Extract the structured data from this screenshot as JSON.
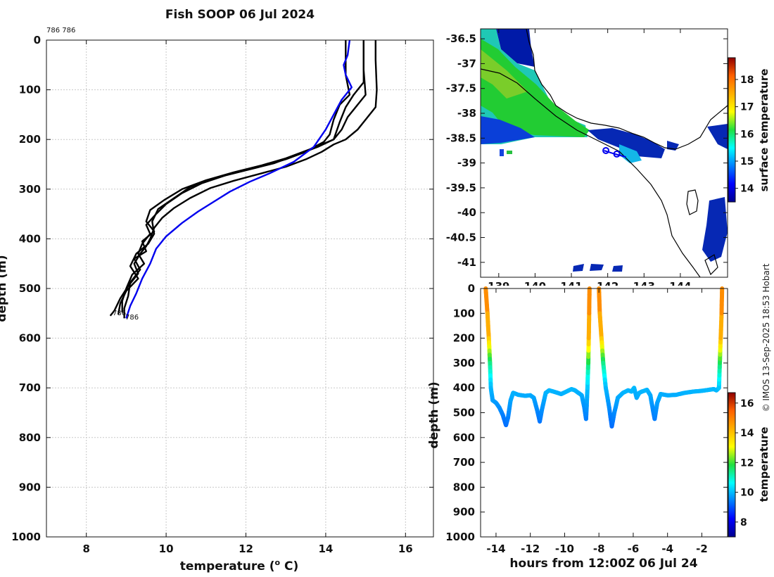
{
  "credit": "© IMOS 13-Sep-2025 18:53 Hobart",
  "chart_data": [
    {
      "id": "profile",
      "type": "line",
      "title": "Fish SOOP 06 Jul 2024",
      "xlabel": "temperature (",
      "xlabel_sup": "o",
      "xlabel_tail": " C)",
      "ylabel": "depth (m)",
      "xlim": [
        7,
        16.7
      ],
      "ylim": [
        1000,
        0
      ],
      "xticks": [
        8,
        10,
        12,
        14,
        16
      ],
      "yticks": [
        0,
        100,
        200,
        300,
        400,
        500,
        600,
        700,
        800,
        900,
        1000
      ],
      "annotations": {
        "top_label": "786 786",
        "bottom_label_a": "786",
        "bottom_label_b": "786"
      },
      "series": [
        {
          "name": "profile-1",
          "color": "#000000",
          "points": [
            [
              15.25,
              0
            ],
            [
              15.25,
              40
            ],
            [
              15.28,
              100
            ],
            [
              15.25,
              135
            ],
            [
              15.1,
              150
            ],
            [
              14.95,
              165
            ],
            [
              14.8,
              180
            ],
            [
              14.5,
              200
            ],
            [
              14.2,
              210
            ],
            [
              13.9,
              225
            ],
            [
              13.5,
              240
            ],
            [
              13.0,
              255
            ],
            [
              12.4,
              268
            ],
            [
              11.7,
              283
            ],
            [
              11.1,
              298
            ],
            [
              10.6,
              318
            ],
            [
              10.2,
              338
            ],
            [
              9.9,
              358
            ],
            [
              9.7,
              378
            ],
            [
              9.6,
              400
            ],
            [
              9.5,
              415
            ],
            [
              9.35,
              430
            ],
            [
              9.2,
              450
            ],
            [
              9.3,
              470
            ],
            [
              9.05,
              495
            ],
            [
              8.85,
              520
            ],
            [
              8.7,
              545
            ],
            [
              8.6,
              555
            ]
          ]
        },
        {
          "name": "profile-2",
          "color": "#000000",
          "points": [
            [
              14.95,
              0
            ],
            [
              14.95,
              60
            ],
            [
              15.0,
              110
            ],
            [
              14.8,
              130
            ],
            [
              14.55,
              155
            ],
            [
              14.4,
              180
            ],
            [
              14.2,
              200
            ],
            [
              13.9,
              210
            ],
            [
              13.5,
              225
            ],
            [
              13.0,
              240
            ],
            [
              12.3,
              256
            ],
            [
              11.5,
              272
            ],
            [
              10.9,
              288
            ],
            [
              10.4,
              308
            ],
            [
              10.0,
              330
            ],
            [
              9.75,
              350
            ],
            [
              9.5,
              372
            ],
            [
              9.6,
              390
            ],
            [
              9.4,
              410
            ],
            [
              9.3,
              430
            ],
            [
              9.45,
              450
            ],
            [
              9.15,
              472
            ],
            [
              9.0,
              500
            ],
            [
              8.9,
              525
            ],
            [
              8.9,
              548
            ]
          ]
        },
        {
          "name": "profile-3",
          "color": "#000000",
          "points": [
            [
              14.95,
              0
            ],
            [
              14.95,
              85
            ],
            [
              14.7,
              110
            ],
            [
              14.5,
              135
            ],
            [
              14.35,
              165
            ],
            [
              14.2,
              200
            ],
            [
              13.8,
              215
            ],
            [
              13.3,
              230
            ],
            [
              12.7,
              248
            ],
            [
              12.0,
              262
            ],
            [
              11.2,
              278
            ],
            [
              10.6,
              296
            ],
            [
              10.2,
              318
            ],
            [
              9.8,
              340
            ],
            [
              9.65,
              365
            ],
            [
              9.7,
              390
            ],
            [
              9.55,
              410
            ],
            [
              9.25,
              430
            ],
            [
              9.1,
              455
            ],
            [
              9.3,
              480
            ],
            [
              9.0,
              505
            ],
            [
              8.85,
              530
            ],
            [
              8.8,
              552
            ]
          ]
        },
        {
          "name": "profile-4",
          "color": "#000000",
          "points": [
            [
              14.5,
              0
            ],
            [
              14.5,
              70
            ],
            [
              14.6,
              110
            ],
            [
              14.35,
              130
            ],
            [
              14.2,
              160
            ],
            [
              14.1,
              190
            ],
            [
              13.95,
              205
            ],
            [
              13.6,
              220
            ],
            [
              13.0,
              238
            ],
            [
              12.4,
              252
            ],
            [
              11.7,
              266
            ],
            [
              11.0,
              282
            ],
            [
              10.4,
              300
            ],
            [
              9.95,
              322
            ],
            [
              9.6,
              342
            ],
            [
              9.5,
              365
            ],
            [
              9.7,
              385
            ],
            [
              9.4,
              405
            ],
            [
              9.5,
              425
            ],
            [
              9.2,
              440
            ],
            [
              9.35,
              462
            ],
            [
              9.1,
              488
            ],
            [
              9.05,
              515
            ],
            [
              8.95,
              540
            ],
            [
              8.95,
              560
            ]
          ]
        },
        {
          "name": "profile-blue",
          "color": "#0000ee",
          "points": [
            [
              14.6,
              0
            ],
            [
              14.55,
              30
            ],
            [
              14.45,
              50
            ],
            [
              14.5,
              70
            ],
            [
              14.65,
              95
            ],
            [
              14.4,
              120
            ],
            [
              14.2,
              150
            ],
            [
              14.0,
              180
            ],
            [
              13.7,
              215
            ],
            [
              13.2,
              245
            ],
            [
              12.6,
              268
            ],
            [
              12.1,
              285
            ],
            [
              11.6,
              305
            ],
            [
              11.2,
              325
            ],
            [
              10.8,
              345
            ],
            [
              10.4,
              368
            ],
            [
              10.0,
              395
            ],
            [
              9.75,
              420
            ],
            [
              9.6,
              450
            ],
            [
              9.4,
              480
            ],
            [
              9.25,
              510
            ],
            [
              9.1,
              535
            ],
            [
              9.0,
              560
            ]
          ]
        }
      ]
    },
    {
      "id": "map",
      "type": "heatmap",
      "xlim": [
        138.5,
        145.3
      ],
      "ylim": [
        -41.3,
        -36.3
      ],
      "xticks": [
        139,
        140,
        141,
        142,
        143,
        144
      ],
      "xtick_labels": [
        "139",
        "140",
        "141",
        "142",
        "143",
        "144"
      ],
      "yticks": [
        -36.5,
        -37,
        -37.5,
        -38,
        -38.5,
        -39,
        -39.5,
        -40,
        -40.5,
        -41
      ],
      "ytick_labels": [
        "-36.5",
        "-37",
        "-37.5",
        "-38",
        "-38.5",
        "-39",
        "-39.5",
        "-40",
        "-40.5",
        "-41"
      ],
      "colorbar": {
        "label": "surface temperature",
        "range": [
          13.5,
          18.8
        ],
        "ticks": [
          14,
          15,
          16,
          17,
          18
        ],
        "tick_labels": [
          "14",
          "15",
          "16",
          "17",
          "18"
        ]
      },
      "track": [
        [
          141.9,
          -38.75
        ],
        [
          142.2,
          -38.82
        ],
        [
          142.5,
          -38.88
        ]
      ],
      "track_markers": [
        [
          141.95,
          -38.75
        ],
        [
          142.25,
          -38.82
        ]
      ]
    },
    {
      "id": "timeseries",
      "type": "scatter",
      "xlabel": "hours from 12:00Z 06 Jul 24",
      "ylabel": "depth (m)",
      "xlim": [
        -14.9,
        -0.5
      ],
      "ylim": [
        1000,
        0
      ],
      "xticks": [
        -14,
        -12,
        -10,
        -8,
        -6,
        -4,
        -2
      ],
      "xtick_labels": [
        "-14",
        "-12",
        "-10",
        "-8",
        "-6",
        "-4",
        "-2"
      ],
      "yticks": [
        0,
        100,
        200,
        300,
        400,
        500,
        600,
        700,
        800,
        900,
        1000
      ],
      "ytick_labels": [
        "0",
        "100",
        "200",
        "300",
        "400",
        "500",
        "600",
        "700",
        "800",
        "900",
        "1000"
      ],
      "colorbar": {
        "label": "temperature",
        "range": [
          7,
          16.7
        ],
        "ticks": [
          8,
          10,
          12,
          14,
          16
        ],
        "tick_labels": [
          "8",
          "10",
          "12",
          "14",
          "16"
        ]
      },
      "track": [
        [
          -14.6,
          0
        ],
        [
          -14.5,
          100
        ],
        [
          -14.42,
          200
        ],
        [
          -14.35,
          300
        ],
        [
          -14.3,
          400
        ],
        [
          -14.2,
          450
        ],
        [
          -14.0,
          460
        ],
        [
          -13.8,
          480
        ],
        [
          -13.6,
          510
        ],
        [
          -13.42,
          550
        ],
        [
          -13.3,
          520
        ],
        [
          -13.15,
          450
        ],
        [
          -13.0,
          420
        ],
        [
          -12.7,
          428
        ],
        [
          -12.3,
          432
        ],
        [
          -12.0,
          430
        ],
        [
          -11.8,
          440
        ],
        [
          -11.6,
          490
        ],
        [
          -11.45,
          535
        ],
        [
          -11.3,
          480
        ],
        [
          -11.1,
          420
        ],
        [
          -10.9,
          410
        ],
        [
          -10.5,
          418
        ],
        [
          -10.2,
          425
        ],
        [
          -9.9,
          415
        ],
        [
          -9.6,
          405
        ],
        [
          -9.4,
          410
        ],
        [
          -9.2,
          420
        ],
        [
          -9.0,
          430
        ],
        [
          -8.85,
          480
        ],
        [
          -8.75,
          525
        ],
        [
          -8.68,
          420
        ],
        [
          -8.62,
          300
        ],
        [
          -8.58,
          150
        ],
        [
          -8.55,
          0
        ],
        [
          -8.0,
          0
        ],
        [
          -7.95,
          100
        ],
        [
          -7.85,
          200
        ],
        [
          -7.75,
          300
        ],
        [
          -7.6,
          400
        ],
        [
          -7.4,
          480
        ],
        [
          -7.25,
          555
        ],
        [
          -7.1,
          500
        ],
        [
          -6.9,
          440
        ],
        [
          -6.6,
          420
        ],
        [
          -6.3,
          410
        ],
        [
          -6.1,
          415
        ],
        [
          -5.95,
          400
        ],
        [
          -5.8,
          440
        ],
        [
          -5.65,
          420
        ],
        [
          -5.5,
          415
        ],
        [
          -5.2,
          408
        ],
        [
          -5.0,
          430
        ],
        [
          -4.85,
          490
        ],
        [
          -4.75,
          525
        ],
        [
          -4.6,
          460
        ],
        [
          -4.4,
          425
        ],
        [
          -4.0,
          430
        ],
        [
          -3.5,
          428
        ],
        [
          -3.0,
          420
        ],
        [
          -2.5,
          415
        ],
        [
          -2.0,
          412
        ],
        [
          -1.6,
          408
        ],
        [
          -1.3,
          405
        ],
        [
          -1.15,
          410
        ],
        [
          -1.0,
          400
        ],
        [
          -0.95,
          300
        ],
        [
          -0.9,
          200
        ],
        [
          -0.85,
          100
        ],
        [
          -0.82,
          0
        ]
      ]
    }
  ]
}
